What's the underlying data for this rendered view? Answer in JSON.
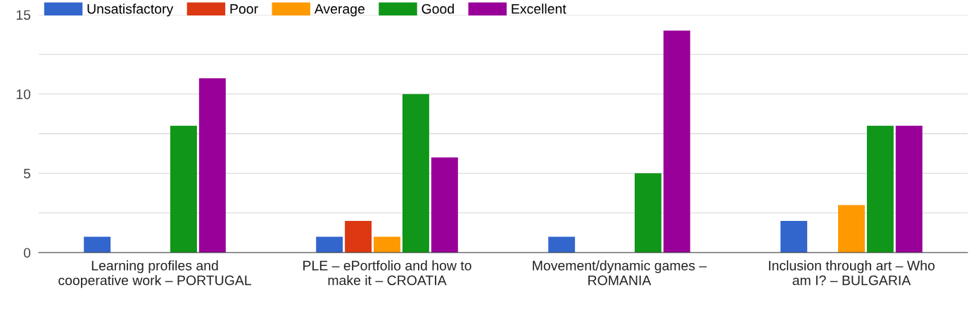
{
  "chart_data": {
    "type": "bar",
    "categories": [
      "Learning profiles and cooperative work – PORTUGAL",
      "PLE – ePortfolio and how to make it – CROATIA",
      "Movement/dynamic games – ROMANIA",
      "Inclusion through art – Who am I? – BULGARIA"
    ],
    "series": [
      {
        "name": "Unsatisfactory",
        "color": "#3366cc",
        "values": [
          1,
          1,
          1,
          2
        ]
      },
      {
        "name": "Poor",
        "color": "#dc3912",
        "values": [
          0,
          2,
          0,
          0
        ]
      },
      {
        "name": "Average",
        "color": "#ff9900",
        "values": [
          0,
          1,
          0,
          3
        ]
      },
      {
        "name": "Good",
        "color": "#109618",
        "values": [
          8,
          10,
          5,
          8
        ]
      },
      {
        "name": "Excellent",
        "color": "#990099",
        "values": [
          11,
          6,
          14,
          8
        ]
      }
    ],
    "ylim": [
      0,
      15
    ],
    "yticks": [
      0,
      {
        "value": 2.5,
        "label": null
      },
      5,
      {
        "value": 7.5,
        "label": null
      },
      10,
      {
        "value": 12.5,
        "label": null
      },
      15
    ],
    "grid": "y",
    "legend": "top"
  }
}
